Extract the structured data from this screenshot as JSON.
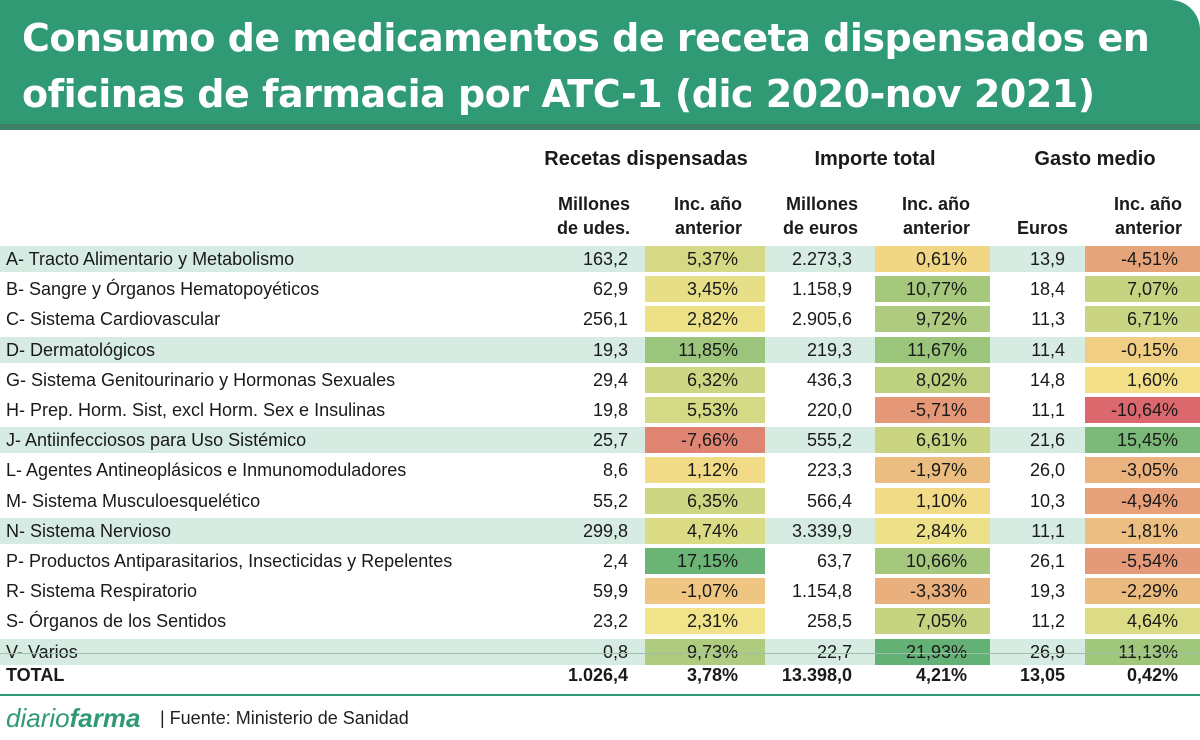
{
  "title_line1": "Consumo de medicamentos de receta dispensados en",
  "title_line2": "oficinas de farmacia por ATC-1 (dic 2020-nov 2021)",
  "groups": [
    "Recetas dispensadas",
    "Importe total",
    "Gasto medio"
  ],
  "sub_headers": {
    "c1": [
      "Millones",
      "de udes."
    ],
    "c2": [
      "Inc. año",
      "anterior"
    ],
    "c3": [
      "Millones",
      "de euros"
    ],
    "c4": [
      "Inc. año",
      "anterior"
    ],
    "c5": [
      "",
      "Euros"
    ],
    "c6": [
      "Inc. año",
      "anterior"
    ]
  },
  "chart_data": {
    "type": "table",
    "title": "Consumo de medicamentos de receta dispensados en oficinas de farmacia por ATC-1 (dic 2020-nov 2021)",
    "columns": [
      "ATC-1",
      "Recetas dispensadas: Millones de udes.",
      "Recetas dispensadas: Inc. año anterior",
      "Importe total: Millones de euros",
      "Importe total: Inc. año anterior",
      "Gasto medio: Euros",
      "Gasto medio: Inc. año anterior"
    ],
    "rows": [
      {
        "label": "A- Tracto Alimentario y Metabolismo",
        "recetas": "163,2",
        "inc_recetas": "5,37%",
        "importe": "2.273,3",
        "inc_importe": "0,61%",
        "gasto": "13,9",
        "inc_gasto": "-4,51%",
        "v1": 5.37,
        "v2": 0.61,
        "v3": -4.51
      },
      {
        "label": "B- Sangre y Órganos Hematopoyéticos",
        "recetas": "62,9",
        "inc_recetas": "3,45%",
        "importe": "1.158,9",
        "inc_importe": "10,77%",
        "gasto": "18,4",
        "inc_gasto": "7,07%",
        "v1": 3.45,
        "v2": 10.77,
        "v3": 7.07
      },
      {
        "label": "C- Sistema Cardiovascular",
        "recetas": "256,1",
        "inc_recetas": "2,82%",
        "importe": "2.905,6",
        "inc_importe": "9,72%",
        "gasto": "11,3",
        "inc_gasto": "6,71%",
        "v1": 2.82,
        "v2": 9.72,
        "v3": 6.71
      },
      {
        "label": "D- Dermatológicos",
        "recetas": "19,3",
        "inc_recetas": "11,85%",
        "importe": "219,3",
        "inc_importe": "11,67%",
        "gasto": "11,4",
        "inc_gasto": "-0,15%",
        "v1": 11.85,
        "v2": 11.67,
        "v3": -0.15
      },
      {
        "label": "G- Sistema Genitourinario y Hormonas Sexuales",
        "recetas": "29,4",
        "inc_recetas": "6,32%",
        "importe": "436,3",
        "inc_importe": "8,02%",
        "gasto": "14,8",
        "inc_gasto": "1,60%",
        "v1": 6.32,
        "v2": 8.02,
        "v3": 1.6
      },
      {
        "label": "H- Prep. Horm. Sist, excl Horm. Sex e Insulinas",
        "recetas": "19,8",
        "inc_recetas": "5,53%",
        "importe": "220,0",
        "inc_importe": "-5,71%",
        "gasto": "11,1",
        "inc_gasto": "-10,64%",
        "v1": 5.53,
        "v2": -5.71,
        "v3": -10.64
      },
      {
        "label": "J- Antiinfecciosos para Uso Sistémico",
        "recetas": "25,7",
        "inc_recetas": "-7,66%",
        "importe": "555,2",
        "inc_importe": "6,61%",
        "gasto": "21,6",
        "inc_gasto": "15,45%",
        "v1": -7.66,
        "v2": 6.61,
        "v3": 15.45
      },
      {
        "label": "L- Agentes Antineoplásicos e Inmunomoduladores",
        "recetas": "8,6",
        "inc_recetas": "1,12%",
        "importe": "223,3",
        "inc_importe": "-1,97%",
        "gasto": "26,0",
        "inc_gasto": "-3,05%",
        "v1": 1.12,
        "v2": -1.97,
        "v3": -3.05
      },
      {
        "label": "M- Sistema Musculoesquelético",
        "recetas": "55,2",
        "inc_recetas": "6,35%",
        "importe": "566,4",
        "inc_importe": "1,10%",
        "gasto": "10,3",
        "inc_gasto": "-4,94%",
        "v1": 6.35,
        "v2": 1.1,
        "v3": -4.94
      },
      {
        "label": "N- Sistema Nervioso",
        "recetas": "299,8",
        "inc_recetas": "4,74%",
        "importe": "3.339,9",
        "inc_importe": "2,84%",
        "gasto": "11,1",
        "inc_gasto": "-1,81%",
        "v1": 4.74,
        "v2": 2.84,
        "v3": -1.81
      },
      {
        "label": "P- Productos Antiparasitarios, Insecticidas y Repelentes",
        "recetas": "2,4",
        "inc_recetas": "17,15%",
        "importe": "63,7",
        "inc_importe": "10,66%",
        "gasto": "26,1",
        "inc_gasto": "-5,54%",
        "v1": 17.15,
        "v2": 10.66,
        "v3": -5.54
      },
      {
        "label": "R- Sistema Respiratorio",
        "recetas": "59,9",
        "inc_recetas": "-1,07%",
        "importe": "1.154,8",
        "inc_importe": "-3,33%",
        "gasto": "19,3",
        "inc_gasto": "-2,29%",
        "v1": -1.07,
        "v2": -3.33,
        "v3": -2.29
      },
      {
        "label": "S- Órganos de los Sentidos",
        "recetas": "23,2",
        "inc_recetas": "2,31%",
        "importe": "258,5",
        "inc_importe": "7,05%",
        "gasto": "11,2",
        "inc_gasto": "4,64%",
        "v1": 2.31,
        "v2": 7.05,
        "v3": 4.64
      },
      {
        "label": "V- Varios",
        "recetas": "0,8",
        "inc_recetas": "9,73%",
        "importe": "22,7",
        "inc_importe": "21,93%",
        "gasto": "26,9",
        "inc_gasto": "11,13%",
        "v1": 9.73,
        "v2": 21.93,
        "v3": 11.13
      }
    ],
    "total": {
      "label": "TOTAL",
      "recetas": "1.026,4",
      "inc_recetas": "3,78%",
      "importe": "13.398,0",
      "inc_importe": "4,21%",
      "gasto": "13,05",
      "inc_gasto": "0,42%"
    }
  },
  "colors": {
    "header_bg": "#2f9a74",
    "band": "#d6ebe1",
    "heat_red": "#d9646c",
    "heat_yellow": "#f4e489",
    "heat_green": "#63b174"
  },
  "footer": {
    "brand_part1": "diario",
    "brand_part2": "farma",
    "source": "| Fuente:  Ministerio de Sanidad"
  }
}
